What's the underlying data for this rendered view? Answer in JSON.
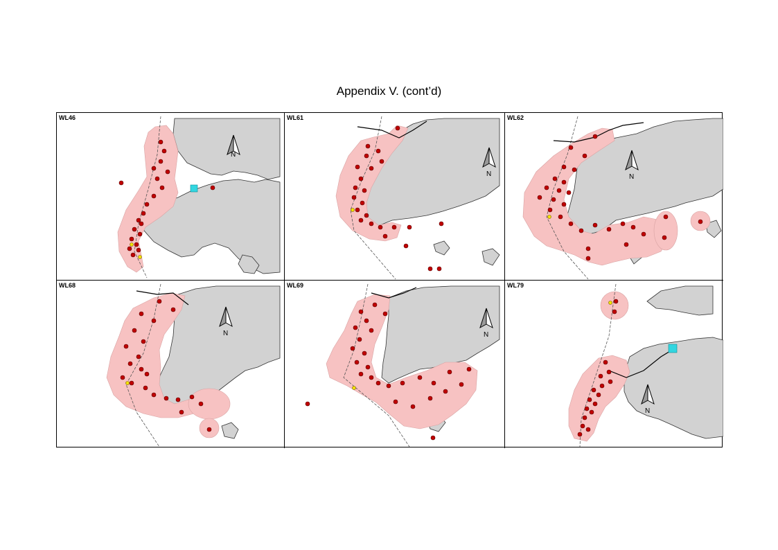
{
  "title": "Appendix V.  (cont’d)",
  "colors": {
    "land": "#d2d2d2",
    "coast_outline": "#333333",
    "range": "#f7c2c2",
    "range_outline": "#d9a3a3",
    "fix": "#c00000",
    "fix_outline": "#5a0000",
    "yellow_fix": "#f2e400",
    "cyan_feature": "#33d6e0"
  },
  "north_label": "N",
  "panels": [
    {
      "id": "WL46",
      "label": "WL46"
    },
    {
      "id": "WL61",
      "label": "WL61"
    },
    {
      "id": "WL62",
      "label": "WL62"
    },
    {
      "id": "WL68",
      "label": "WL68"
    },
    {
      "id": "WL69",
      "label": "WL69"
    },
    {
      "id": "WL79",
      "label": "WL79"
    }
  ]
}
